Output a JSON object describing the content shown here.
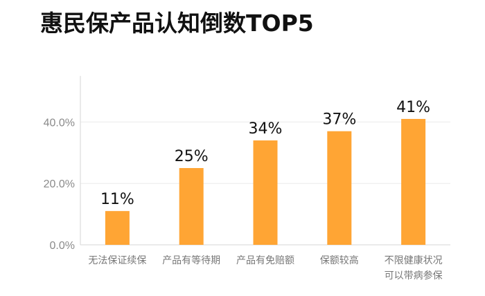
{
  "chart_data": {
    "type": "bar",
    "title": "惠民保产品认知倒数TOP5",
    "categories": [
      [
        "无法保证续保"
      ],
      [
        "产品有等待期"
      ],
      [
        "产品有免赔额"
      ],
      [
        "保额较高"
      ],
      [
        "不限健康状况",
        "可以带病参保"
      ]
    ],
    "values": [
      11,
      25,
      34,
      37,
      41
    ],
    "data_labels": [
      "11%",
      "25%",
      "34%",
      "37%",
      "41%"
    ],
    "ylim": [
      0,
      55
    ],
    "yticks": [
      0,
      20,
      40
    ],
    "ytick_labels": [
      "0.0%",
      "20.0%",
      "40.0%"
    ],
    "bar_color": "#FFA534",
    "grid": true,
    "legend": "none"
  }
}
